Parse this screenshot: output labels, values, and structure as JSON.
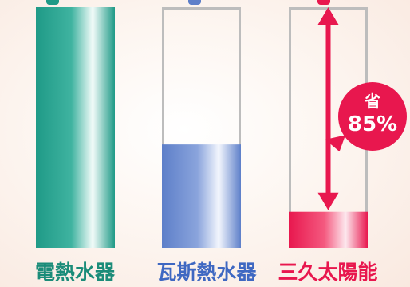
{
  "chart_data": {
    "type": "bar",
    "title": "",
    "xlabel": "",
    "ylabel": "",
    "ylim": [
      0,
      100
    ],
    "categories": [
      "電熱水器",
      "瓦斯熱水器",
      "三久太陽能"
    ],
    "values": [
      100,
      43,
      15
    ],
    "show_capacity_outline": [
      false,
      true,
      true
    ],
    "grid": false,
    "legend": "none"
  },
  "colors": {
    "electric": "#1f9a87",
    "gas": "#5d7fc9",
    "solar": "#e8174e",
    "outline": "#bdbdbd"
  },
  "labels": [
    {
      "text": "電熱水器",
      "color": "#1b8c79"
    },
    {
      "text": "瓦斯熱水器",
      "color": "#3f68c2"
    },
    {
      "text": "三久太陽能",
      "color": "#e8174e"
    }
  ],
  "savings": {
    "word": "省",
    "percent": "85%"
  }
}
